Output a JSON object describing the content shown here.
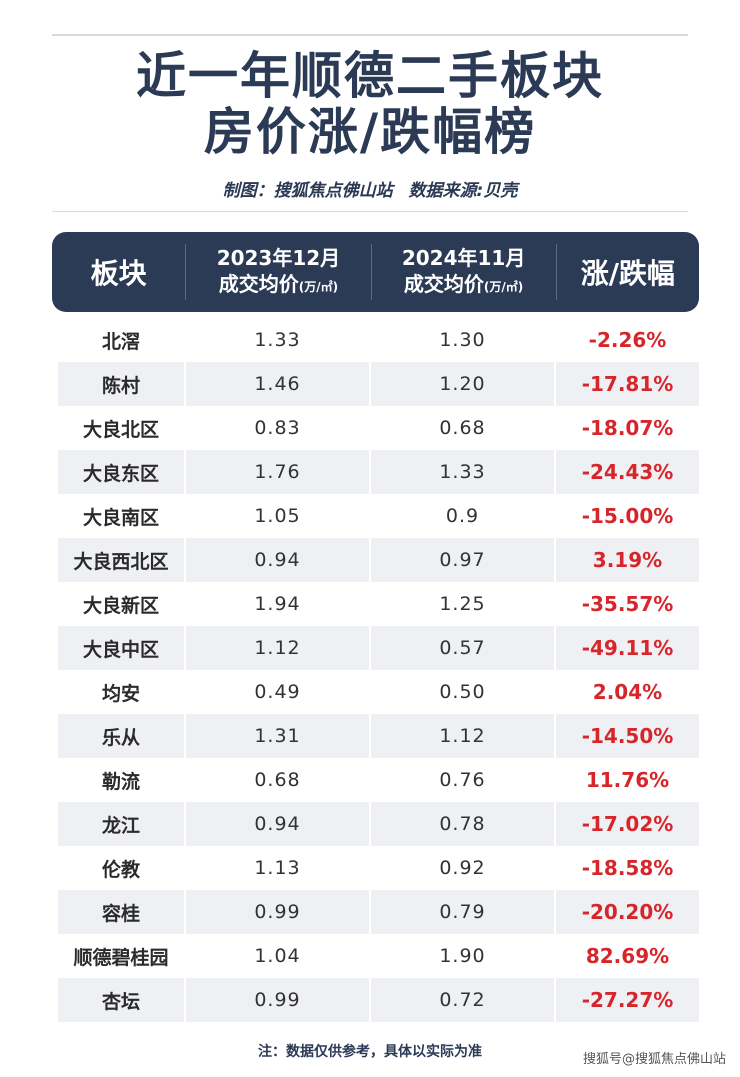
{
  "title_line1": "近一年顺德二手板块",
  "title_line2": "房价涨/跌幅榜",
  "credit_left": "制图：搜狐焦点佛山站",
  "credit_right": "数据来源:贝壳",
  "header": {
    "col1": "板块",
    "col2_top": "2023年12月",
    "col2_bottom": "成交均价",
    "col2_unit": "(万/㎡)",
    "col3_top": "2024年11月",
    "col3_bottom": "成交均价",
    "col3_unit": "(万/㎡)",
    "col4": "涨/跌幅"
  },
  "rows": [
    {
      "name": "北滘",
      "p2023": "1.33",
      "p2024": "1.30",
      "change": "-2.26%"
    },
    {
      "name": "陈村",
      "p2023": "1.46",
      "p2024": "1.20",
      "change": "-17.81%"
    },
    {
      "name": "大良北区",
      "p2023": "0.83",
      "p2024": "0.68",
      "change": "-18.07%"
    },
    {
      "name": "大良东区",
      "p2023": "1.76",
      "p2024": "1.33",
      "change": "-24.43%"
    },
    {
      "name": "大良南区",
      "p2023": "1.05",
      "p2024": "0.9",
      "change": "-15.00%"
    },
    {
      "name": "大良西北区",
      "p2023": "0.94",
      "p2024": "0.97",
      "change": "3.19%"
    },
    {
      "name": "大良新区",
      "p2023": "1.94",
      "p2024": "1.25",
      "change": "-35.57%"
    },
    {
      "name": "大良中区",
      "p2023": "1.12",
      "p2024": "0.57",
      "change": "-49.11%"
    },
    {
      "name": "均安",
      "p2023": "0.49",
      "p2024": "0.50",
      "change": "2.04%"
    },
    {
      "name": "乐从",
      "p2023": "1.31",
      "p2024": "1.12",
      "change": "-14.50%"
    },
    {
      "name": "勒流",
      "p2023": "0.68",
      "p2024": "0.76",
      "change": "11.76%"
    },
    {
      "name": "龙江",
      "p2023": "0.94",
      "p2024": "0.78",
      "change": "-17.02%"
    },
    {
      "name": "伦教",
      "p2023": "1.13",
      "p2024": "0.92",
      "change": "-18.58%"
    },
    {
      "name": "容桂",
      "p2023": "0.99",
      "p2024": "0.79",
      "change": "-20.20%"
    },
    {
      "name": "顺德碧桂园",
      "p2023": "1.04",
      "p2024": "1.90",
      "change": "82.69%"
    },
    {
      "name": "杏坛",
      "p2023": "0.99",
      "p2024": "0.72",
      "change": "-27.27%"
    }
  ],
  "note": "注：数据仅供参考，具体以实际为准",
  "watermark": "搜狐号@搜狐焦点佛山站",
  "colors": {
    "navy": "#2b3a55",
    "red": "#d7262b",
    "stripe": "#eef0f4"
  }
}
